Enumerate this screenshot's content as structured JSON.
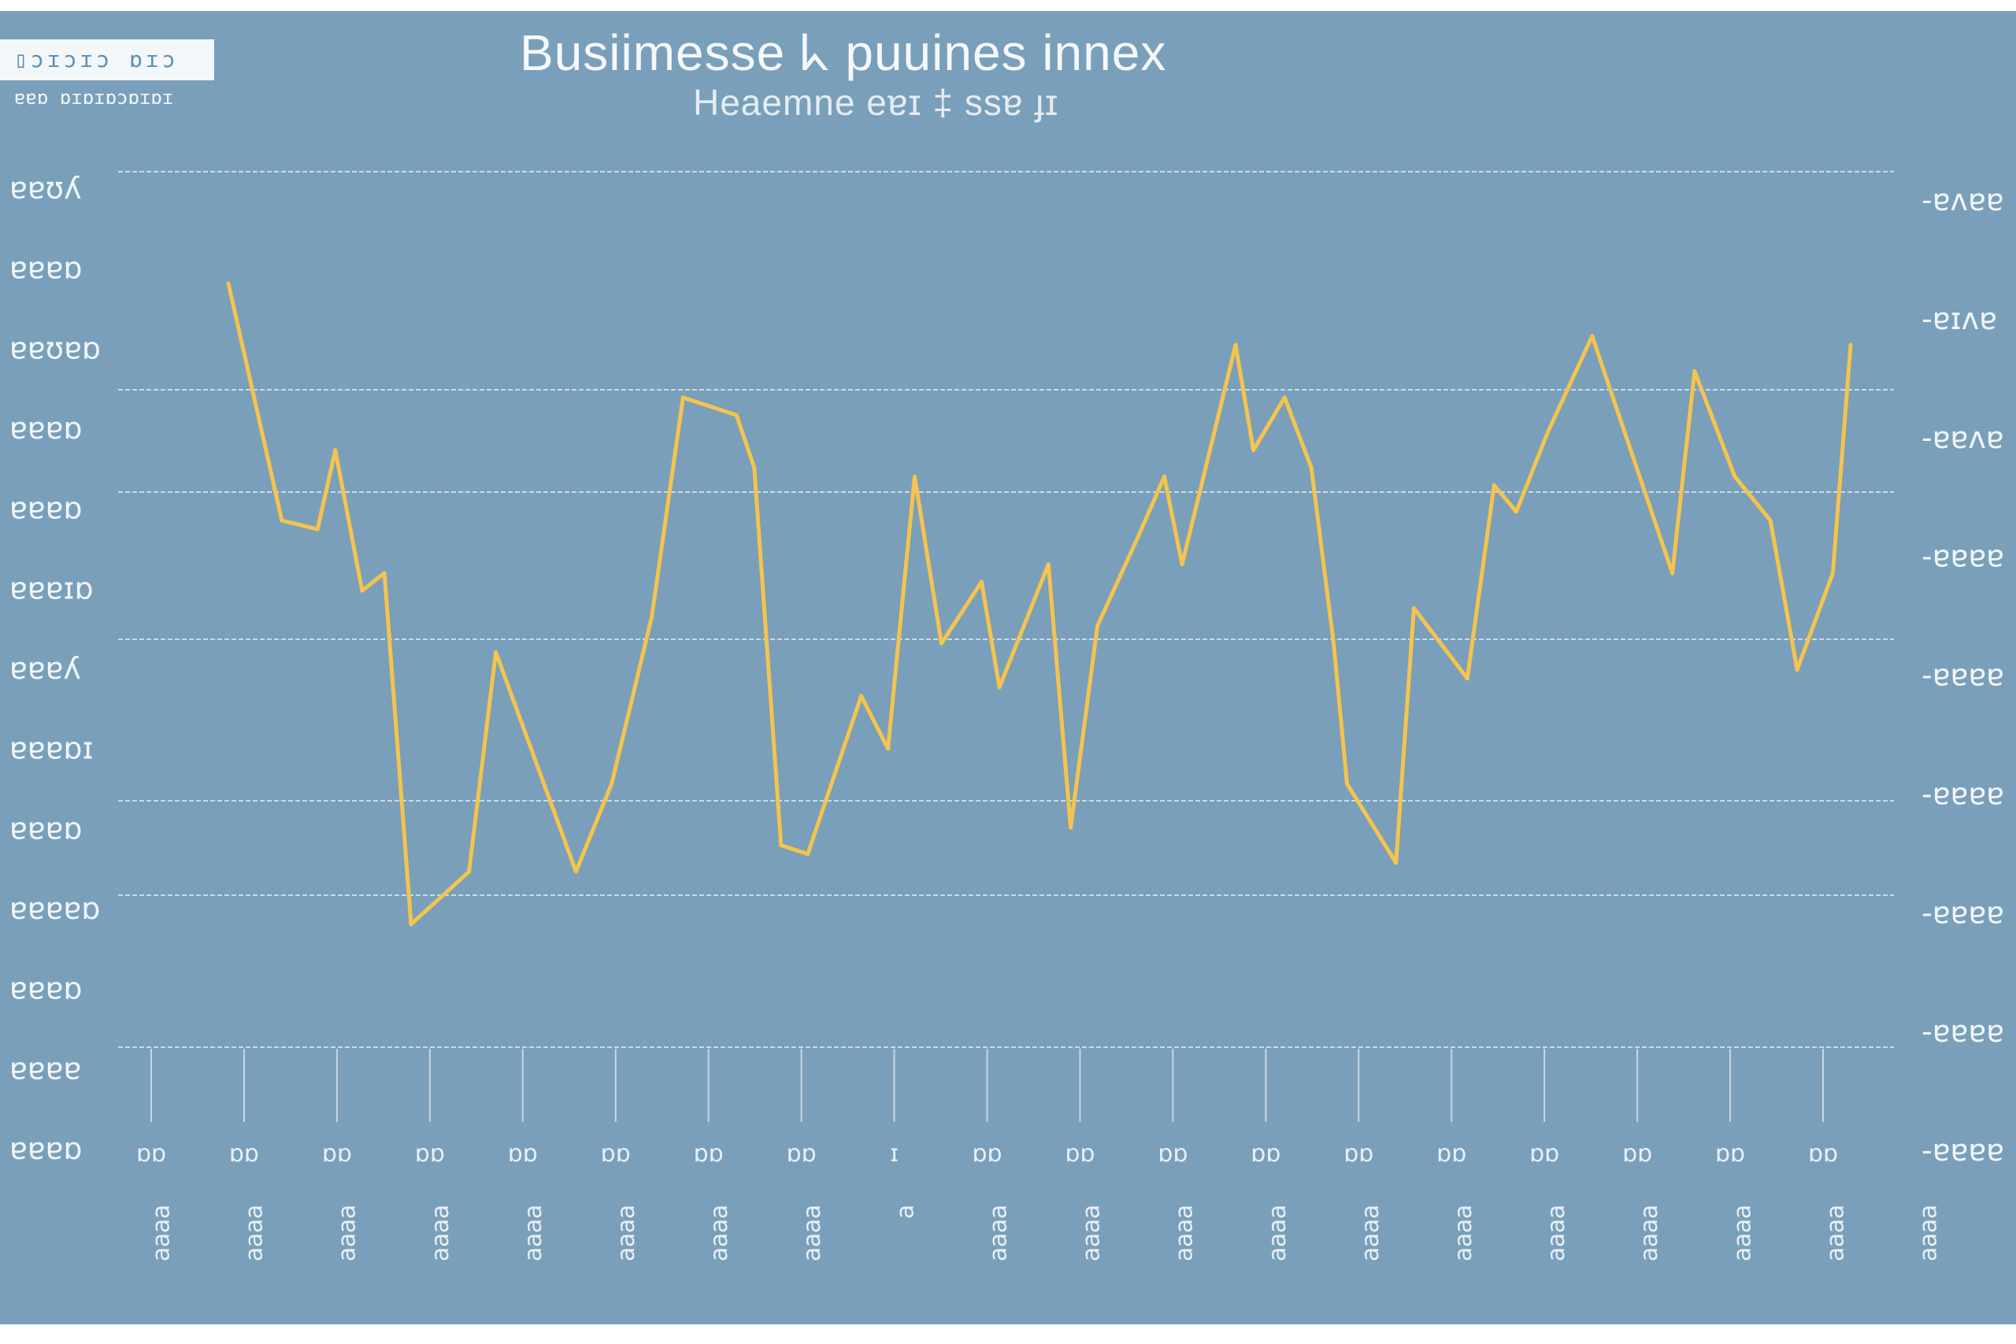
{
  "badge": {
    "label": "▯ɔɪɔɪɔ ɒɪɔ",
    "caption": "ɐɐɒ ɒɪɒɪɒɔɒɪɒɪ"
  },
  "colors": {
    "background": "#7a9fba",
    "line": "#f5c44e",
    "grid": "#d9e6ef",
    "text": "#f3f7fa"
  },
  "chart_data": {
    "type": "line",
    "title": "Busiimesse ᖾ puuines innex",
    "subtitle": "Heaemne eɐɪ ‡ ssɐ ɟɪ",
    "legend": "none",
    "grid": true,
    "y_tick_labels": [
      "ɐɐʊʎ",
      "ɐɐɐɒ",
      "ɐɐʊɐɒ",
      "ɐɐɐɒ",
      "ɐɐɐɒ",
      "ɐɐɐɪɒ",
      "ɐɐɐʎ",
      "ɐɐɐɒɪ",
      "ɐɐɐɒ",
      "ɐɐɐɐɒ",
      "ɐɐɐɒ",
      "ɐɐɐɐ",
      "ɐɐɐɒ"
    ],
    "y2_tick_labels": [
      "ɐʌɐɐ",
      "ɐɪʌɐ",
      "ɐɐʌɐ",
      "ɐɐɐɐ",
      "ɐɐɐɐ",
      "ɐɐɐɐ",
      "ɐɐɐɐ",
      "ɐɐɐɐ",
      "ɐɐɐɐ"
    ],
    "x_top_labels": [
      "ɒɒ",
      "ɒɒ",
      "ɒɒ",
      "ɒɒ",
      "ɒɒ",
      "ɒɒ",
      "ɒɒ",
      "ɒɒ",
      "ɪ",
      "ɒɒ",
      "ɒɒ",
      "ɒɒ",
      "ɒɒ",
      "ɒɒ",
      "ɒɒ",
      "ɒɒ",
      "ɒɒ",
      "ɒɒ",
      "ɒɒ"
    ],
    "x_bottom_labels": [
      "ɐɐɐɐ",
      "ɐɐɐɐ",
      "ɐɐɐɐ",
      "ɐɐɐɐ",
      "ɐɐɐɐ",
      "ɐɐɐɐ",
      "ɐɐɐɐ",
      "ɐɐɐɐ",
      "ɐ",
      "ɐɐɐɐ",
      "ɐɐɐɐ",
      "ɐɐɐɐ",
      "ɐɐɐɐ",
      "ɐɐɐɐ",
      "ɐɐɐɐ",
      "ɐɐɐɐ",
      "ɐɐɐɐ",
      "ɐɐɐɐ",
      "ɐɐɐɐ",
      "ɐɐɐɐ"
    ],
    "ylim": [
      0,
      100
    ],
    "series": [
      {
        "x": [
          0,
          1.2,
          2.0,
          2.4,
          3.0,
          3.5,
          4.1,
          5.4,
          6.0,
          7.8,
          8.6,
          9.5,
          10.2,
          11.4,
          11.8,
          12.4,
          13.0,
          14.2,
          14.8,
          15.4,
          16.0,
          16.9,
          17.3,
          18.4,
          18.9,
          19.5,
          20.4,
          21.0,
          21.4,
          22.6,
          23.0,
          23.7,
          24.3,
          24.8,
          25.1,
          26.2,
          26.6,
          27.8,
          28.4,
          28.9,
          29.6,
          30.6,
          31.4,
          32.4,
          32.9,
          33.8,
          34.6,
          35.2,
          36.0,
          36.4
        ],
        "y": [
          87,
          60,
          59,
          68,
          52,
          54,
          14,
          20,
          45,
          20,
          30,
          49,
          74,
          72,
          66,
          23,
          22,
          40,
          34,
          65,
          46,
          53,
          41,
          55,
          25,
          48,
          58,
          65,
          55,
          80,
          68,
          74,
          66,
          46,
          30,
          21,
          50,
          42,
          64,
          61,
          70,
          81,
          69,
          54,
          77,
          65,
          60,
          43,
          54,
          80
        ]
      }
    ]
  }
}
